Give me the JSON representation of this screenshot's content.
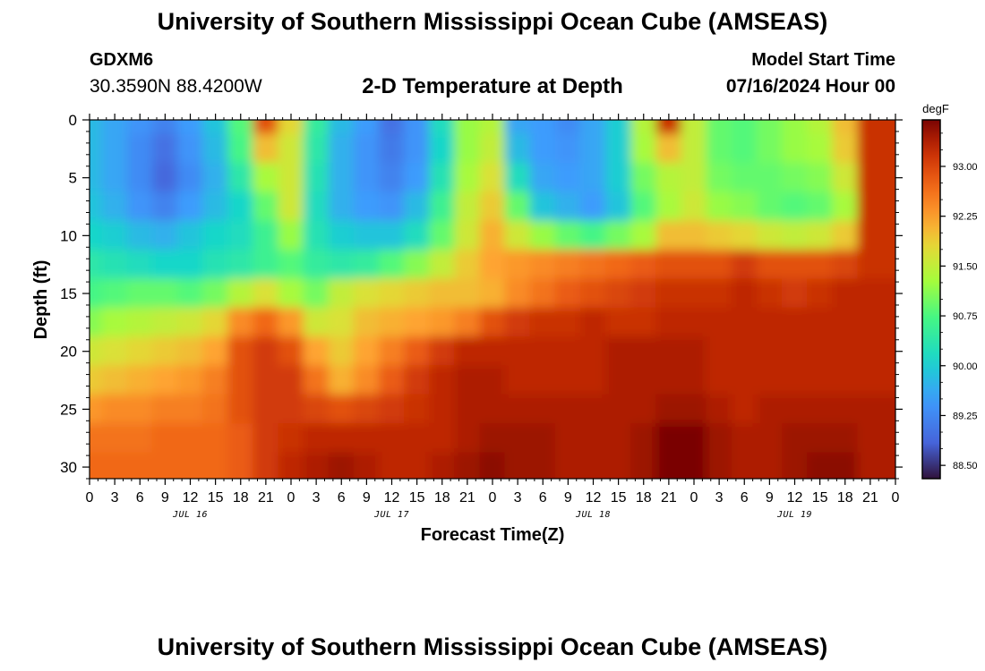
{
  "header": {
    "title": "University of Southern Mississippi Ocean Cube (AMSEAS)",
    "station_id": "GDXM6",
    "station_coords": "30.3590N  88.4200W",
    "subtitle": "2-D Temperature at Depth",
    "model_start_label": "Model Start Time",
    "model_start_value": "07/16/2024 Hour 00"
  },
  "footer": {
    "title": "University of Southern Mississippi Ocean Cube (AMSEAS)"
  },
  "chart_data": {
    "type": "heatmap",
    "title": "2-D Temperature at Depth",
    "xlabel": "Forecast Time(Z)",
    "ylabel": "Depth (ft)",
    "x_range_hours": [
      0,
      96
    ],
    "y_range_ft": [
      0,
      31
    ],
    "x_tick_labels": [
      "0",
      "3",
      "6",
      "9",
      "12",
      "15",
      "18",
      "21",
      "0",
      "3",
      "6",
      "9",
      "12",
      "15",
      "18",
      "21",
      "0",
      "3",
      "6",
      "9",
      "12",
      "15",
      "18",
      "21",
      "0",
      "3",
      "6",
      "9",
      "12",
      "15",
      "18",
      "21",
      "0"
    ],
    "y_tick_labels": [
      "0",
      "5",
      "10",
      "15",
      "20",
      "25",
      "30"
    ],
    "day_labels": [
      {
        "label": "JUL 16",
        "hour": 12
      },
      {
        "label": "JUL 17",
        "hour": 36
      },
      {
        "label": "JUL 18",
        "hour": 60
      },
      {
        "label": "JUL 19",
        "hour": 84
      }
    ],
    "colorbar": {
      "unit": "degF",
      "min": 88.3,
      "max": 93.7,
      "tick_labels": [
        "88.50",
        "89.25",
        "90.00",
        "90.75",
        "91.50",
        "92.25",
        "93.00"
      ],
      "tick_values": [
        88.5,
        89.25,
        90.0,
        90.75,
        91.5,
        92.25,
        93.0
      ]
    },
    "depths_ft": [
      0,
      2.5,
      5,
      7.5,
      10,
      12.5,
      15,
      17.5,
      20,
      22.5,
      25,
      27.5,
      30,
      31
    ],
    "hours": [
      0,
      3,
      6,
      9,
      12,
      15,
      18,
      21,
      24,
      27,
      30,
      33,
      36,
      39,
      42,
      45,
      48,
      51,
      54,
      57,
      60,
      63,
      66,
      69,
      72,
      75,
      78,
      81,
      84,
      87,
      90,
      93,
      96
    ],
    "temperature_degF": [
      [
        89.8,
        89.6,
        89.4,
        89.2,
        89.5,
        89.9,
        90.8,
        92.9,
        91.8,
        90.5,
        89.8,
        89.5,
        89.0,
        89.4,
        90.2,
        91.2,
        91.4,
        89.6,
        89.5,
        89.3,
        89.6,
        90.0,
        91.4,
        93.2,
        91.5,
        90.9,
        90.8,
        91.0,
        91.2,
        91.4,
        92.0,
        93.2,
        93.2
      ],
      [
        89.8,
        89.6,
        89.3,
        89.0,
        89.4,
        89.8,
        90.7,
        92.0,
        91.6,
        90.4,
        89.7,
        89.4,
        89.1,
        89.4,
        90.1,
        91.2,
        91.5,
        89.8,
        89.5,
        89.4,
        89.6,
        90.0,
        91.3,
        92.0,
        91.5,
        90.9,
        90.8,
        91.0,
        91.2,
        91.3,
        91.9,
        93.2,
        93.2
      ],
      [
        89.8,
        89.6,
        89.3,
        88.9,
        89.3,
        89.7,
        90.4,
        91.3,
        91.6,
        90.3,
        89.7,
        89.4,
        89.2,
        89.5,
        90.3,
        91.3,
        91.7,
        90.2,
        89.6,
        89.5,
        89.6,
        90.0,
        91.0,
        91.4,
        91.5,
        91.0,
        90.9,
        90.9,
        91.0,
        91.1,
        91.6,
        93.2,
        93.2
      ],
      [
        89.9,
        89.7,
        89.4,
        89.2,
        89.5,
        89.8,
        90.1,
        90.9,
        91.6,
        90.2,
        89.7,
        89.5,
        89.4,
        89.8,
        90.6,
        91.5,
        91.9,
        90.9,
        89.9,
        89.7,
        89.5,
        89.9,
        90.8,
        91.3,
        91.6,
        91.2,
        91.1,
        90.9,
        90.8,
        90.9,
        91.3,
        93.2,
        93.2
      ],
      [
        90.1,
        90.0,
        89.8,
        89.7,
        89.9,
        90.1,
        90.2,
        90.6,
        91.2,
        90.3,
        90.0,
        89.9,
        89.9,
        90.2,
        90.9,
        91.6,
        92.1,
        91.6,
        91.2,
        90.9,
        90.7,
        91.0,
        91.3,
        92.0,
        92.0,
        91.9,
        91.8,
        91.6,
        91.5,
        91.6,
        91.9,
        93.2,
        93.2
      ],
      [
        90.4,
        90.3,
        90.2,
        90.1,
        90.1,
        90.3,
        90.4,
        90.6,
        90.8,
        90.5,
        90.4,
        90.5,
        90.8,
        91.1,
        91.5,
        91.9,
        92.2,
        92.3,
        92.4,
        92.5,
        92.6,
        92.7,
        92.8,
        92.9,
        92.9,
        92.9,
        93.1,
        92.9,
        92.9,
        92.9,
        93.0,
        93.2,
        93.2
      ],
      [
        90.7,
        90.8,
        90.9,
        90.9,
        90.8,
        91.0,
        91.4,
        91.7,
        91.3,
        91.0,
        91.5,
        91.7,
        91.8,
        91.9,
        92.0,
        92.0,
        92.1,
        92.4,
        92.6,
        92.8,
        92.9,
        93.0,
        93.1,
        93.2,
        93.2,
        93.2,
        93.3,
        93.2,
        93.1,
        93.2,
        93.3,
        93.3,
        93.3
      ],
      [
        91.1,
        91.3,
        91.4,
        91.5,
        91.6,
        91.8,
        92.4,
        92.7,
        92.3,
        91.6,
        91.7,
        92.0,
        92.1,
        92.2,
        92.3,
        92.5,
        92.9,
        93.1,
        93.2,
        93.2,
        93.3,
        93.2,
        93.2,
        93.3,
        93.3,
        93.3,
        93.3,
        93.3,
        93.3,
        93.3,
        93.3,
        93.3,
        93.3
      ],
      [
        91.6,
        91.7,
        91.8,
        91.9,
        92.0,
        92.2,
        92.9,
        93.1,
        92.9,
        92.2,
        91.9,
        92.2,
        92.5,
        92.8,
        93.1,
        93.3,
        93.3,
        93.3,
        93.3,
        93.3,
        93.3,
        93.4,
        93.4,
        93.4,
        93.4,
        93.3,
        93.3,
        93.3,
        93.3,
        93.3,
        93.3,
        93.3,
        93.3
      ],
      [
        91.9,
        92.0,
        92.1,
        92.2,
        92.3,
        92.5,
        92.9,
        93.1,
        93.1,
        92.6,
        92.1,
        92.4,
        92.8,
        93.1,
        93.3,
        93.4,
        93.4,
        93.3,
        93.3,
        93.3,
        93.3,
        93.4,
        93.4,
        93.4,
        93.4,
        93.3,
        93.3,
        93.3,
        93.3,
        93.3,
        93.3,
        93.3,
        93.3
      ],
      [
        92.3,
        92.4,
        92.4,
        92.5,
        92.5,
        92.6,
        92.9,
        93.1,
        93.1,
        93.0,
        92.9,
        93.0,
        93.1,
        93.2,
        93.3,
        93.4,
        93.4,
        93.4,
        93.4,
        93.4,
        93.4,
        93.4,
        93.4,
        93.5,
        93.5,
        93.4,
        93.3,
        93.4,
        93.4,
        93.4,
        93.4,
        93.4,
        93.4
      ],
      [
        92.6,
        92.6,
        92.6,
        92.7,
        92.7,
        92.7,
        92.8,
        93.1,
        93.2,
        93.3,
        93.3,
        93.3,
        93.3,
        93.3,
        93.3,
        93.4,
        93.5,
        93.5,
        93.5,
        93.4,
        93.4,
        93.4,
        93.5,
        93.9,
        93.8,
        93.5,
        93.4,
        93.4,
        93.5,
        93.5,
        93.5,
        93.4,
        93.4
      ],
      [
        92.7,
        92.7,
        92.7,
        92.7,
        92.7,
        92.7,
        92.8,
        93.1,
        93.3,
        93.4,
        93.5,
        93.4,
        93.3,
        93.3,
        93.4,
        93.5,
        93.6,
        93.5,
        93.5,
        93.4,
        93.4,
        93.4,
        93.5,
        94.0,
        93.8,
        93.5,
        93.4,
        93.4,
        93.5,
        93.6,
        93.6,
        93.4,
        93.4
      ],
      [
        92.7,
        92.7,
        92.7,
        92.7,
        92.7,
        92.7,
        92.8,
        93.1,
        93.3,
        93.4,
        93.5,
        93.4,
        93.3,
        93.3,
        93.4,
        93.5,
        93.6,
        93.5,
        93.5,
        93.4,
        93.4,
        93.4,
        93.5,
        93.9,
        93.8,
        93.5,
        93.4,
        93.4,
        93.5,
        93.6,
        93.6,
        93.4,
        93.4
      ]
    ]
  }
}
